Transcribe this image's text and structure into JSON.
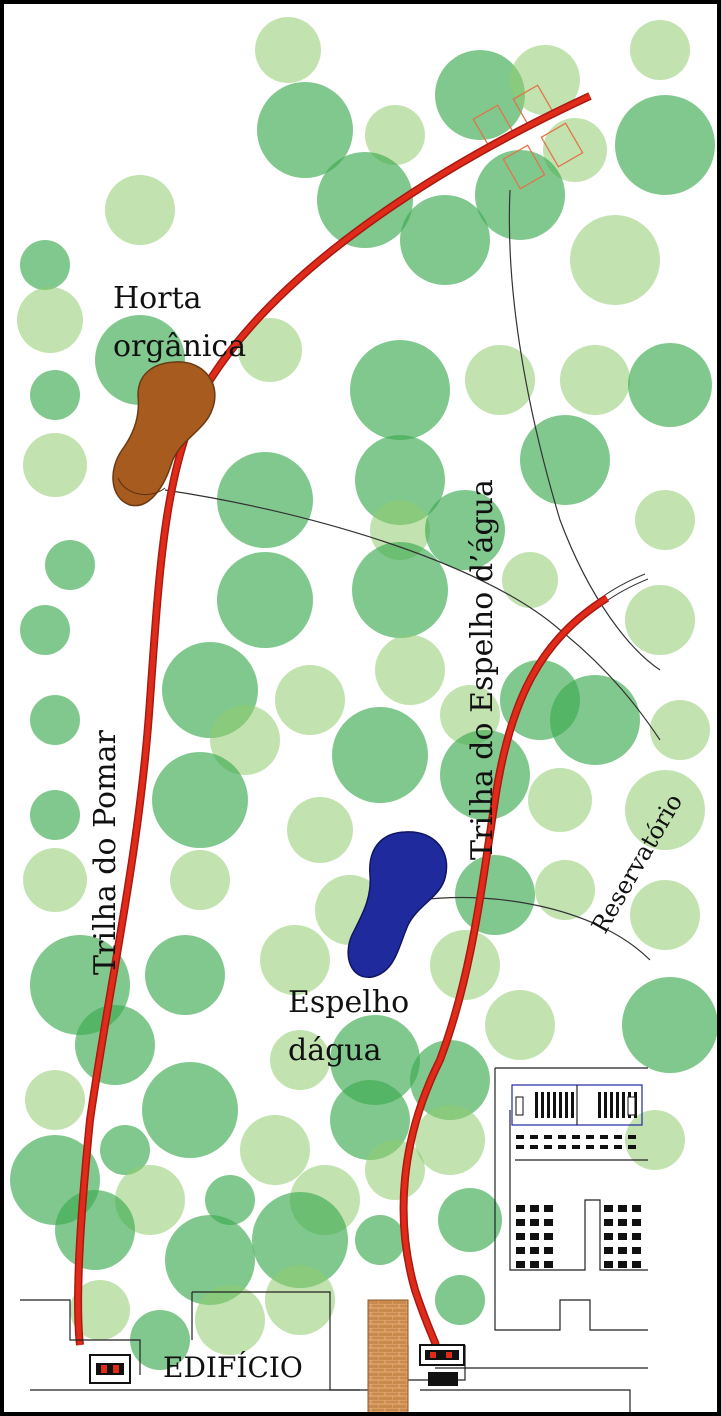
{
  "labels": {
    "horta_line1": "Horta",
    "horta_line2": "orgânica",
    "trilha_pomar": "Trilha do Pomar",
    "trilha_espelho": "Trilha do Espelho d’água",
    "reservatorio": "Reservatório",
    "espelho_line1": "Espelho",
    "espelho_line2": "dágua",
    "edificio": "EDIFÍCIO"
  },
  "colors": {
    "tree_dark": "#3daa52",
    "tree_light": "#8fcc70",
    "trail": "#e02a1a",
    "horta": "#a85b1e",
    "espelho": "#1f2a9c",
    "brick": "#c98a4e",
    "frame": "#000000"
  },
  "icons": {
    "tree": "tree-canopy-icon",
    "garden": "garden-plot-icon",
    "pond": "water-mirror-icon",
    "building": "building-icon"
  }
}
